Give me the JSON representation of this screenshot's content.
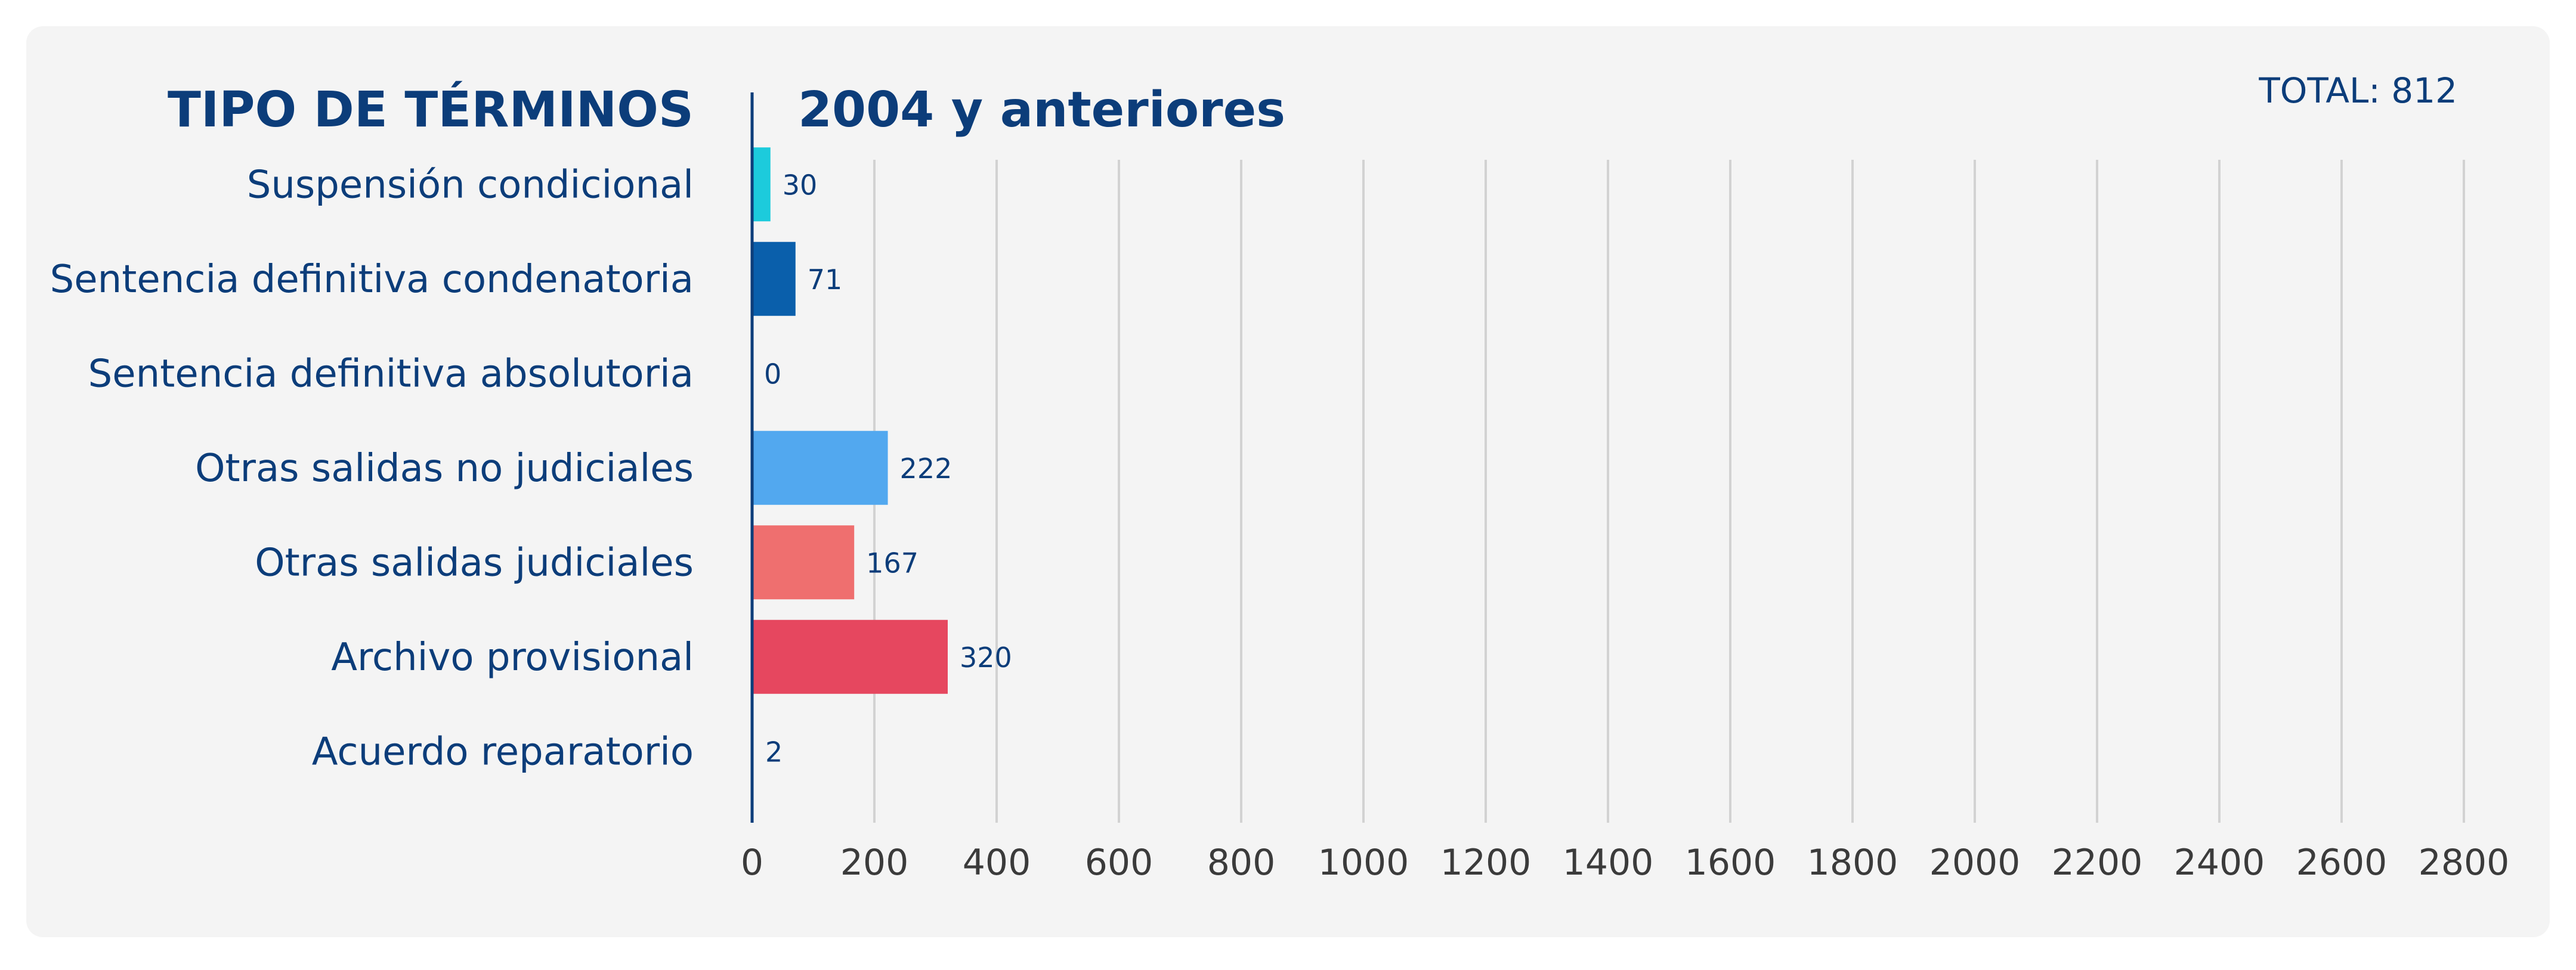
{
  "header": {
    "title": "TIPO DE TÉRMINOS",
    "subtitle": "2004 y anteriores",
    "total": "TOTAL: 812"
  },
  "chart_data": {
    "type": "bar",
    "orientation": "horizontal",
    "title": "2004 y anteriores",
    "categories": [
      "Suspensión condicional",
      "Sentencia definitiva condenatoria",
      "Sentencia definitiva absolutoria",
      "Otras salidas no judiciales",
      "Otras salidas judiciales",
      "Archivo provisional",
      "Acuerdo reparatorio"
    ],
    "values": [
      30,
      71,
      0,
      222,
      167,
      320,
      2
    ],
    "value_labels": [
      "30",
      "71",
      "0",
      "222",
      "167",
      "320",
      "2"
    ],
    "colors": [
      "#1ccbdc",
      "#0a5fab",
      "#1ccbdc",
      "#52a8ef",
      "#ef6f6f",
      "#e6475f",
      "#1ccbdc"
    ],
    "xlim": [
      0,
      2800
    ],
    "xticks": [
      "0",
      "200",
      "400",
      "600",
      "800",
      "1000",
      "1200",
      "1400",
      "1600",
      "1800",
      "2000",
      "2200",
      "2400",
      "2600",
      "2800"
    ],
    "grid": true,
    "legend": "none"
  }
}
